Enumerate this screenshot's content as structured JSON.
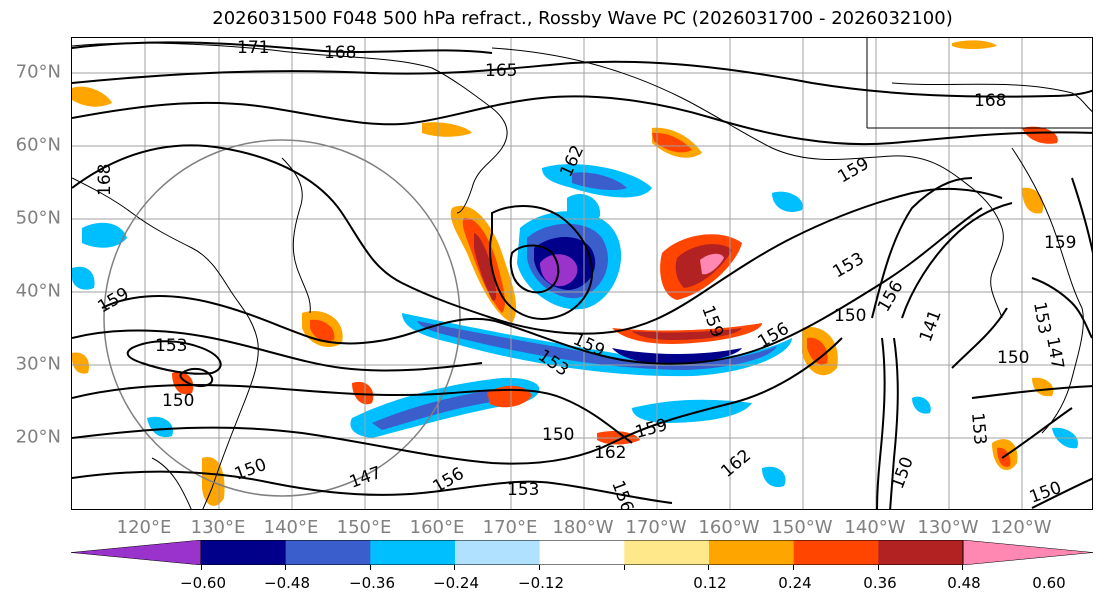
{
  "title": "2026031500 F048 500 hPa refract., Rossby Wave PC (2026031700 - 2026032100)",
  "map": {
    "lat_labels": [
      "70°N",
      "60°N",
      "50°N",
      "40°N",
      "30°N",
      "20°N"
    ],
    "lon_labels": [
      "120°E",
      "130°E",
      "140°E",
      "150°E",
      "160°E",
      "170°E",
      "180°W",
      "170°W",
      "160°W",
      "150°W",
      "140°W",
      "130°W",
      "120°W"
    ],
    "contour_labels": [
      "171",
      "168",
      "165",
      "168",
      "168",
      "162",
      "159",
      "159",
      "159",
      "153",
      "156",
      "159",
      "153",
      "159",
      "153",
      "150",
      "156",
      "141",
      "153",
      "150",
      "147",
      "150",
      "162",
      "159",
      "162",
      "156",
      "153",
      "156",
      "150",
      "150",
      "153",
      "150",
      "147",
      "150"
    ],
    "projection_circle": true,
    "gridlines": true
  },
  "colorbar": {
    "colors": [
      "#9933CC",
      "#00008B",
      "#3A5FCD",
      "#00BFFF",
      "#B0E2FF",
      "#FFFFFF",
      "#FFE88A",
      "#FFA500",
      "#FF4500",
      "#B22222",
      "#FF88B2"
    ],
    "tick_labels": [
      "−0.60",
      "−0.48",
      "−0.36",
      "−0.24",
      "−0.12",
      "0.12",
      "0.24",
      "0.36",
      "0.48",
      "0.60"
    ],
    "extend": "both"
  }
}
